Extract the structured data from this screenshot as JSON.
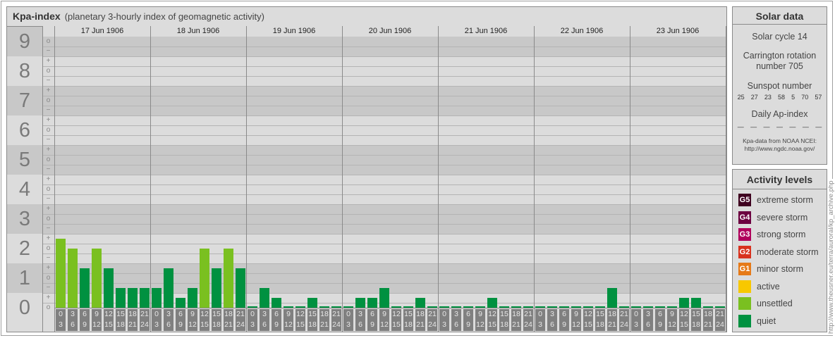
{
  "header": {
    "title": "Kpa-index",
    "subtitle": "(planetary 3-hourly index of geomagnetic activity)"
  },
  "chart_data": {
    "type": "bar",
    "title": "Kpa-index",
    "ylim": [
      "0o",
      "9o"
    ],
    "y_tick_labels": [
      "0",
      "1",
      "2",
      "3",
      "4",
      "5",
      "6",
      "7",
      "8",
      "9"
    ],
    "sub_tick_labels": [
      "−",
      "o",
      "+"
    ],
    "days": [
      "17 Jun 1906",
      "18 Jun 1906",
      "19 Jun 1906",
      "20 Jun 1906",
      "21 Jun 1906",
      "22 Jun 1906",
      "23 Jun 1906"
    ],
    "intervals": [
      [
        "0",
        "3"
      ],
      [
        "3",
        "6"
      ],
      [
        "6",
        "9"
      ],
      [
        "9",
        "12"
      ],
      [
        "12",
        "15"
      ],
      [
        "15",
        "18"
      ],
      [
        "18",
        "21"
      ],
      [
        "21",
        "24"
      ]
    ],
    "values": [
      [
        "2+",
        "2o",
        "1+",
        "2o",
        "1+",
        "1-",
        "1-",
        "1-"
      ],
      [
        "1-",
        "1+",
        "0+",
        "1-",
        "2o",
        "1+",
        "2o",
        "1+"
      ],
      [
        "0o",
        "1-",
        "0+",
        "0o",
        "0o",
        "0+",
        "0o",
        "0o"
      ],
      [
        "0o",
        "0+",
        "0+",
        "1-",
        "0o",
        "0o",
        "0+",
        "0o"
      ],
      [
        "0o",
        "0o",
        "0o",
        "0o",
        "0+",
        "0o",
        "0o",
        "0o"
      ],
      [
        "0o",
        "0o",
        "0o",
        "0o",
        "0o",
        "0o",
        "1-",
        "0o"
      ],
      [
        "0o",
        "0o",
        "0o",
        "0o",
        "0+",
        "0+",
        "0o",
        "0o"
      ]
    ],
    "grid": true
  },
  "solar": {
    "title": "Solar data",
    "cycle": "Solar cycle 14",
    "carrington": "Carrington rotation number 705",
    "sunspot_label": "Sunspot number",
    "sunspots": [
      "25",
      "27",
      "23",
      "58",
      "5",
      "70",
      "57"
    ],
    "ap_label": "Daily Ap-index",
    "ap": [
      "—",
      "—",
      "—",
      "—",
      "—",
      "—",
      "—"
    ],
    "source": "Kpa-data from NOAA NCEI: http://www.ngdc.noaa.gov/"
  },
  "levels": {
    "title": "Activity levels",
    "items": [
      {
        "badge": "G5",
        "label": "extreme storm",
        "color": "#3f0020"
      },
      {
        "badge": "G4",
        "label": "severe storm",
        "color": "#6c0040"
      },
      {
        "badge": "G3",
        "label": "strong storm",
        "color": "#b0005c"
      },
      {
        "badge": "G2",
        "label": "moderate storm",
        "color": "#d8321e"
      },
      {
        "badge": "G1",
        "label": "minor storm",
        "color": "#e67a18"
      },
      {
        "badge": "",
        "label": "active",
        "color": "#f8c800"
      },
      {
        "badge": "",
        "label": "unsettled",
        "color": "#7ac020"
      },
      {
        "badge": "",
        "label": "quiet",
        "color": "#009140"
      }
    ]
  },
  "watermark": "http://www.theusner.eu/terra/auroral/kp_archive.php"
}
